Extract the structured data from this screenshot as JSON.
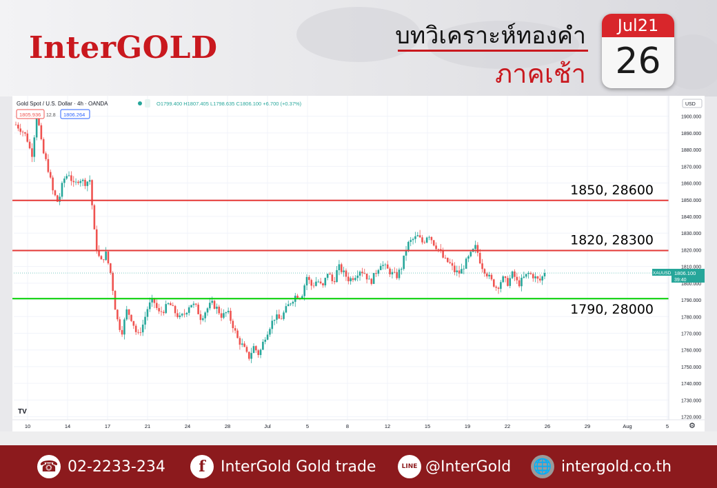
{
  "header": {
    "logo": "InterGOLD",
    "title": "บทวิเคราะห์ทองคำ",
    "subtitle": "ภาคเช้า",
    "calendar_month": "Jul21",
    "calendar_day": "26"
  },
  "chart_header": {
    "symbol": "Gold Spot / U.S. Dollar · 4h · OANDA",
    "ohlc": "O1799.400 H1807.405 L1798.635 C1806.100 +6.700 (+0.37%)",
    "sell_box": "1805.936",
    "spread": "12.8",
    "buy_box": "1806.264",
    "currency_button": "USD"
  },
  "price_tag": {
    "symbol": "XAUUSD",
    "value": "1806.100",
    "timer": "39:40"
  },
  "footer": {
    "phone": "02-2233-234",
    "facebook": "InterGold Gold trade",
    "line": "@InterGold",
    "website": "intergold.co.th",
    "line_icon_text": "LINE"
  },
  "colors": {
    "brand_red": "#c9181e",
    "footer": "#8c1a1d",
    "up": "#26a69a",
    "down": "#ef5350",
    "resistance": "#e53935",
    "support": "#00d000"
  },
  "chart_data": {
    "type": "candlestick",
    "ylim": [
      1719,
      1904
    ],
    "y_ticks": [
      1720,
      1730,
      1740,
      1750,
      1760,
      1770,
      1780,
      1790,
      1800,
      1810,
      1820,
      1830,
      1840,
      1850,
      1860,
      1870,
      1880,
      1890,
      1900
    ],
    "y_tick_labels": [
      "1720.000",
      "1730.000",
      "1740.000",
      "1750.000",
      "1760.000",
      "1770.000",
      "1780.000",
      "1790.000",
      "1800.000",
      "1810.000",
      "1820.000",
      "1830.000",
      "1840.000",
      "1850.000",
      "1860.000",
      "1870.000",
      "1880.000",
      "1890.000",
      "1900.000"
    ],
    "x_tick_labels": [
      "10",
      "14",
      "17",
      "21",
      "24",
      "28",
      "Jul",
      "5",
      "8",
      "12",
      "15",
      "19",
      "22",
      "26",
      "29",
      "Aug",
      "5"
    ],
    "horizontal_levels": [
      {
        "price": 1849.569,
        "label": "1849.569",
        "annotation": "1850, 28600",
        "color": "#e53935"
      },
      {
        "price": 1819.578,
        "label": "1819.578",
        "annotation": "1820, 28300",
        "color": "#e53935"
      },
      {
        "price": 1790.751,
        "label": "1790.751",
        "annotation": "1790, 28000",
        "color": "#00d000"
      }
    ],
    "close_path": [
      1895,
      1892,
      1888,
      1876,
      1902,
      1880,
      1870,
      1855,
      1848,
      1862,
      1866,
      1858,
      1863,
      1860,
      1862,
      1825,
      1812,
      1818,
      1805,
      1780,
      1770,
      1784,
      1778,
      1768,
      1775,
      1786,
      1790,
      1782,
      1784,
      1788,
      1783,
      1779,
      1782,
      1788,
      1786,
      1779,
      1784,
      1788,
      1785,
      1780,
      1783,
      1775,
      1766,
      1762,
      1755,
      1762,
      1757,
      1767,
      1774,
      1780,
      1778,
      1784,
      1789,
      1793,
      1792,
      1804,
      1798,
      1802,
      1797,
      1807,
      1800,
      1810,
      1806,
      1802,
      1804,
      1808,
      1806,
      1800,
      1806,
      1812,
      1809,
      1806,
      1804,
      1810,
      1823,
      1826,
      1828,
      1824,
      1830,
      1824,
      1820,
      1814,
      1812,
      1807,
      1806,
      1812,
      1817,
      1822,
      1811,
      1806,
      1801,
      1797,
      1803,
      1800,
      1806,
      1799,
      1803,
      1806,
      1804,
      1801,
      1806
    ],
    "last_price": 1806.1
  }
}
